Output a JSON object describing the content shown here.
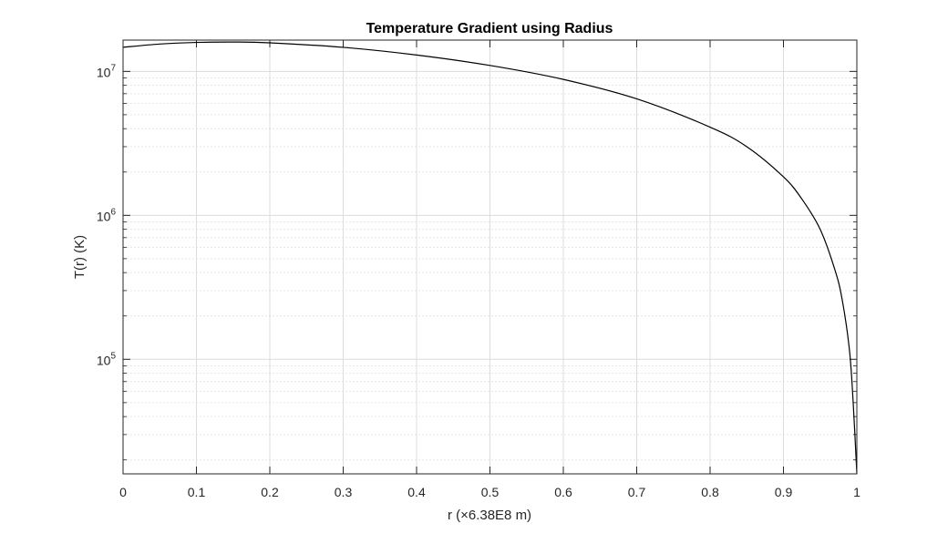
{
  "chart_data": {
    "type": "line",
    "title": "Temperature Gradient using Radius",
    "xlabel": "r (×6.38E8 m)",
    "ylabel": "T(r) (K)",
    "xlim": [
      0,
      1
    ],
    "ylim": [
      16000,
      16500000
    ],
    "y_scale": "log",
    "grid": true,
    "minor_grid": true,
    "x_ticks": [
      0,
      0.1,
      0.2,
      0.3,
      0.4,
      0.5,
      0.6,
      0.7,
      0.8,
      0.9,
      1
    ],
    "x_tick_labels": [
      "0",
      "0.1",
      "0.2",
      "0.3",
      "0.4",
      "0.5",
      "0.6",
      "0.7",
      "0.8",
      "0.9",
      "1"
    ],
    "y_ticks": [
      {
        "value": 100000,
        "base": "10",
        "exp": "5"
      },
      {
        "value": 1000000,
        "base": "10",
        "exp": "6"
      },
      {
        "value": 10000000,
        "base": "10",
        "exp": "7"
      }
    ],
    "line_color": "#000000",
    "series": [
      {
        "x": [
          0,
          0.05,
          0.1,
          0.15,
          0.2,
          0.3,
          0.4,
          0.5,
          0.6,
          0.7,
          0.8,
          0.85,
          0.9,
          0.925,
          0.95,
          0.97,
          0.98,
          0.99,
          0.995,
          1
        ],
        "values": [
          14700000,
          15500000,
          15900000,
          16000000,
          15800000,
          14700000,
          13000000,
          11000000,
          8800000,
          6450000,
          4100000,
          3000000,
          1850000,
          1300000,
          800000,
          420000,
          260000,
          115000,
          50000,
          16000
        ]
      }
    ]
  }
}
